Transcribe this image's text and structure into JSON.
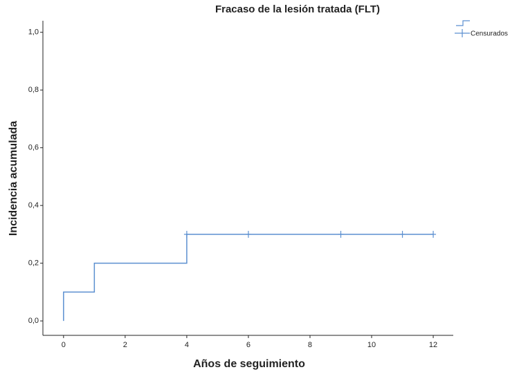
{
  "chart_data": {
    "type": "step",
    "title": "Fracaso de la lesión tratada (FLT)",
    "x_label": "Años de seguimiento",
    "y_label": "Incidencia acumulada",
    "series": [
      {
        "color": "#5b8fd0",
        "x": [
          0,
          0,
          1,
          4,
          12
        ],
        "values": [
          0,
          0.1,
          0.2,
          0.3,
          0.3
        ]
      }
    ],
    "censored": {
      "name": "Censurados",
      "color": "#5b8fd0",
      "x": [
        4,
        6,
        9,
        11,
        12
      ],
      "values": [
        0.3,
        0.3,
        0.3,
        0.3,
        0.3
      ]
    },
    "xlim": [
      -0.67,
      12.65
    ],
    "ylim": [
      -0.05,
      1.04
    ],
    "xticks": [
      0,
      2,
      4,
      6,
      8,
      10,
      12
    ],
    "yticks": [
      {
        "value": 0,
        "label": "0,0"
      },
      {
        "value": 0.2,
        "label": "0,2"
      },
      {
        "value": 0.4,
        "label": "0,4"
      },
      {
        "value": 0.6,
        "label": "0,6"
      },
      {
        "value": 0.8,
        "label": "0,8"
      },
      {
        "value": 1,
        "label": "1,0"
      }
    ]
  }
}
